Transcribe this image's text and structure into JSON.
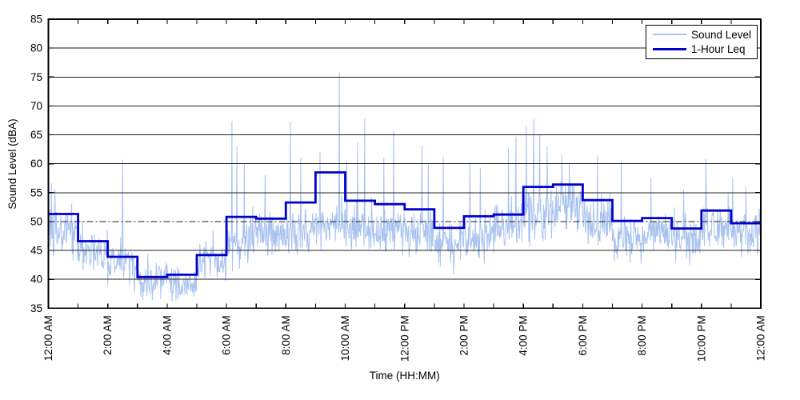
{
  "chart_data": {
    "type": "line",
    "title": "",
    "xlabel": "Time (HH:MM)",
    "ylabel": "Sound Level (dBA)",
    "ylim": [
      35,
      85
    ],
    "ytick_values": [
      35,
      40,
      45,
      50,
      55,
      60,
      65,
      70,
      75,
      80,
      85
    ],
    "x_total_hours": 24,
    "minor_xtick_every_hours": 1,
    "xtick_hours": [
      0,
      2,
      4,
      6,
      8,
      10,
      12,
      14,
      16,
      18,
      20,
      22,
      24
    ],
    "xtick_labels": [
      "12:00 AM",
      "2:00 AM",
      "4:00 AM",
      "6:00 AM",
      "8:00 AM",
      "10:00 AM",
      "12:00 PM",
      "2:00 PM",
      "4:00 PM",
      "6:00 PM",
      "8:00 PM",
      "10:00 PM",
      "12:00 AM"
    ],
    "grid": {
      "horizontal": true,
      "vertical": false,
      "line_color": "#1f1f1f",
      "reference_line": {
        "value": 50,
        "style": "dash-dot",
        "color": "#1f1f1f"
      }
    },
    "legend": {
      "position": "top-right",
      "entries": [
        {
          "label": "Sound Level",
          "color": "#a9c3ef",
          "line_weight": "thin"
        },
        {
          "label": "1-Hour Leq",
          "color": "#0000cd",
          "line_weight": "thick"
        }
      ]
    },
    "series": [
      {
        "name": "Sound Level",
        "kind": "minutely_noise_synthesized",
        "color": "#a9c3ef",
        "points_per_hour": 60,
        "hourly_base": [
          48.5,
          45.0,
          43.0,
          39.8,
          39.8,
          43.0,
          47.0,
          48.5,
          48.5,
          49.5,
          49.0,
          48.5,
          48.0,
          46.5,
          47.5,
          48.5,
          51.5,
          52.5,
          50.5,
          47.5,
          48.5,
          47.0,
          49.0,
          48.0
        ],
        "hourly_spread": [
          2.5,
          1.8,
          1.8,
          1.5,
          1.6,
          1.5,
          2.2,
          2.0,
          2.2,
          2.5,
          2.3,
          2.3,
          2.2,
          2.2,
          2.2,
          2.3,
          2.5,
          2.3,
          2.2,
          2.2,
          2.0,
          1.8,
          2.0,
          1.8
        ],
        "spikes": [
          [
            0.1,
            56.6
          ],
          [
            0.22,
            55.6
          ],
          [
            1.15,
            50.2
          ],
          [
            2.5,
            60.7
          ],
          [
            2.9,
            37.6
          ],
          [
            3.5,
            36.4
          ],
          [
            4.3,
            36.3
          ],
          [
            5.55,
            48.5
          ],
          [
            6.19,
            67.4
          ],
          [
            6.35,
            63.0
          ],
          [
            6.6,
            60.0
          ],
          [
            7.3,
            58.0
          ],
          [
            8.15,
            67.3
          ],
          [
            8.5,
            61.0
          ],
          [
            9.15,
            62.0
          ],
          [
            9.8,
            75.8
          ],
          [
            10.05,
            60.5
          ],
          [
            10.42,
            63.7
          ],
          [
            10.65,
            67.8
          ],
          [
            11.3,
            61.0
          ],
          [
            11.64,
            65.7
          ],
          [
            12.59,
            63.1
          ],
          [
            12.8,
            59.8
          ],
          [
            13.3,
            61.2
          ],
          [
            13.65,
            40.8
          ],
          [
            14.2,
            60.3
          ],
          [
            14.55,
            59.3
          ],
          [
            15.5,
            62.8
          ],
          [
            15.75,
            64.7
          ],
          [
            16.1,
            66.5
          ],
          [
            16.35,
            67.7
          ],
          [
            16.55,
            65.0
          ],
          [
            16.8,
            63.0
          ],
          [
            17.3,
            61.5
          ],
          [
            17.55,
            60.0
          ],
          [
            18.5,
            61.5
          ],
          [
            19.3,
            60.5
          ],
          [
            19.6,
            42.8
          ],
          [
            20.3,
            57.5
          ],
          [
            21.4,
            55.5
          ],
          [
            21.6,
            42.5
          ],
          [
            22.15,
            60.8
          ],
          [
            23.05,
            57.5
          ],
          [
            23.5,
            56.0
          ]
        ],
        "floor": 36.2,
        "ceiling": 80,
        "seed": 1337
      },
      {
        "name": "1-Hour Leq",
        "kind": "hourly_step",
        "color": "#0000cd",
        "hourly_values": [
          51.3,
          46.6,
          43.9,
          40.4,
          40.8,
          44.2,
          50.8,
          50.5,
          53.3,
          58.5,
          53.6,
          53.0,
          52.1,
          48.9,
          50.9,
          51.2,
          56.0,
          56.4,
          53.7,
          50.1,
          50.6,
          48.8,
          51.9,
          49.7
        ]
      }
    ]
  }
}
